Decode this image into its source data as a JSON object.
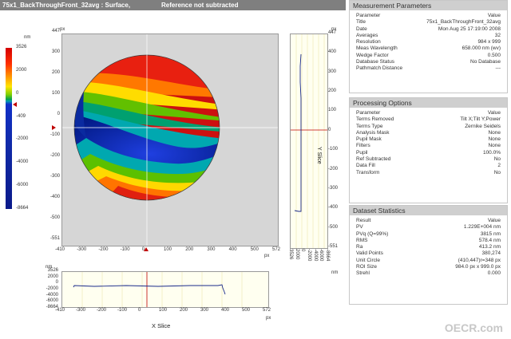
{
  "header": {
    "title": "75x1_BackThroughFront_32avg : Surface,",
    "status": "Reference not subtracted"
  },
  "colorbar": {
    "unit": "nm",
    "ticks": [
      "3526",
      "2000",
      "0",
      "-409",
      "-2000",
      "-4000",
      "-6000",
      "-8664"
    ]
  },
  "main_plot": {
    "unit": "px",
    "y_ticks": [
      "447",
      "300",
      "200",
      "100",
      "0",
      "-100",
      "-200",
      "-300",
      "-400",
      "-500",
      "-551"
    ],
    "x_ticks": [
      "-410",
      "-300",
      "-200",
      "-100",
      "0",
      "100",
      "200",
      "300",
      "400",
      "500",
      "572"
    ]
  },
  "y_slice": {
    "title": "Y Slice",
    "unit_top": "px",
    "unit_bottom": "nm",
    "y_ticks": [
      "447",
      "400",
      "300",
      "200",
      "100",
      "0",
      "-100",
      "-200",
      "-300",
      "-400",
      "-500",
      "-551"
    ],
    "x_ticks": [
      "3526",
      "2000",
      "0",
      "-2000",
      "-4000",
      "-6000",
      "-8664"
    ]
  },
  "x_slice": {
    "title": "X Slice",
    "unit_top": "nm",
    "unit_right": "px",
    "y_ticks": [
      "3526",
      "2000",
      "0",
      "-2000",
      "-4000",
      "-6000",
      "-8664"
    ],
    "x_ticks": [
      "-410",
      "-300",
      "-200",
      "-100",
      "0",
      "100",
      "200",
      "300",
      "400",
      "500",
      "572"
    ]
  },
  "measurement_parameters": {
    "title": "Measurement Parameters",
    "header": [
      "Parameter",
      "Value"
    ],
    "rows": [
      [
        "Title",
        "75x1_BackThroughFront_32avg"
      ],
      [
        "Date",
        "Mon Aug 25 17:19:00 2008"
      ],
      [
        "Averages",
        "32"
      ],
      [
        "Resolution",
        "984 x 999"
      ],
      [
        "Meas Wavelength",
        "658.000 nm (wv)"
      ],
      [
        "Wedge Factor",
        "0.500"
      ],
      [
        "Database Status",
        "No Database"
      ],
      [
        "Pathmatch Distance",
        "---"
      ]
    ]
  },
  "processing_options": {
    "title": "Processing Options",
    "header": [
      "Parameter",
      "Value"
    ],
    "rows": [
      [
        "Terms Removed",
        "Tilt X;Tilt Y;Power"
      ],
      [
        "Terms Type",
        "Zernike Seidels"
      ],
      [
        "Analysis Mask",
        "None"
      ],
      [
        "Pupil Mask",
        "None"
      ],
      [
        "Filters",
        "None"
      ],
      [
        "Pupil",
        "100.0%"
      ],
      [
        "Ref Subtracted",
        "No"
      ],
      [
        "Data Fill",
        "2"
      ],
      [
        "Transform",
        "No"
      ]
    ]
  },
  "dataset_statistics": {
    "title": "Dataset Statistics",
    "header": [
      "Result",
      "Value"
    ],
    "rows": [
      [
        "PV",
        "1.229E+004 nm"
      ],
      [
        "PVq (Q=99%)",
        "3815 nm"
      ],
      [
        "RMS",
        "578.4 nm"
      ],
      [
        "Ra",
        "413.2 nm"
      ],
      [
        "Valid Points",
        "380,274"
      ],
      [
        "Unit Circle",
        "(410,447)r=348 px"
      ],
      [
        "ROI Size",
        "984.0 px x 999.0 px"
      ],
      [
        "Strehl",
        "0.000"
      ]
    ]
  },
  "watermark": "OECR.com"
}
